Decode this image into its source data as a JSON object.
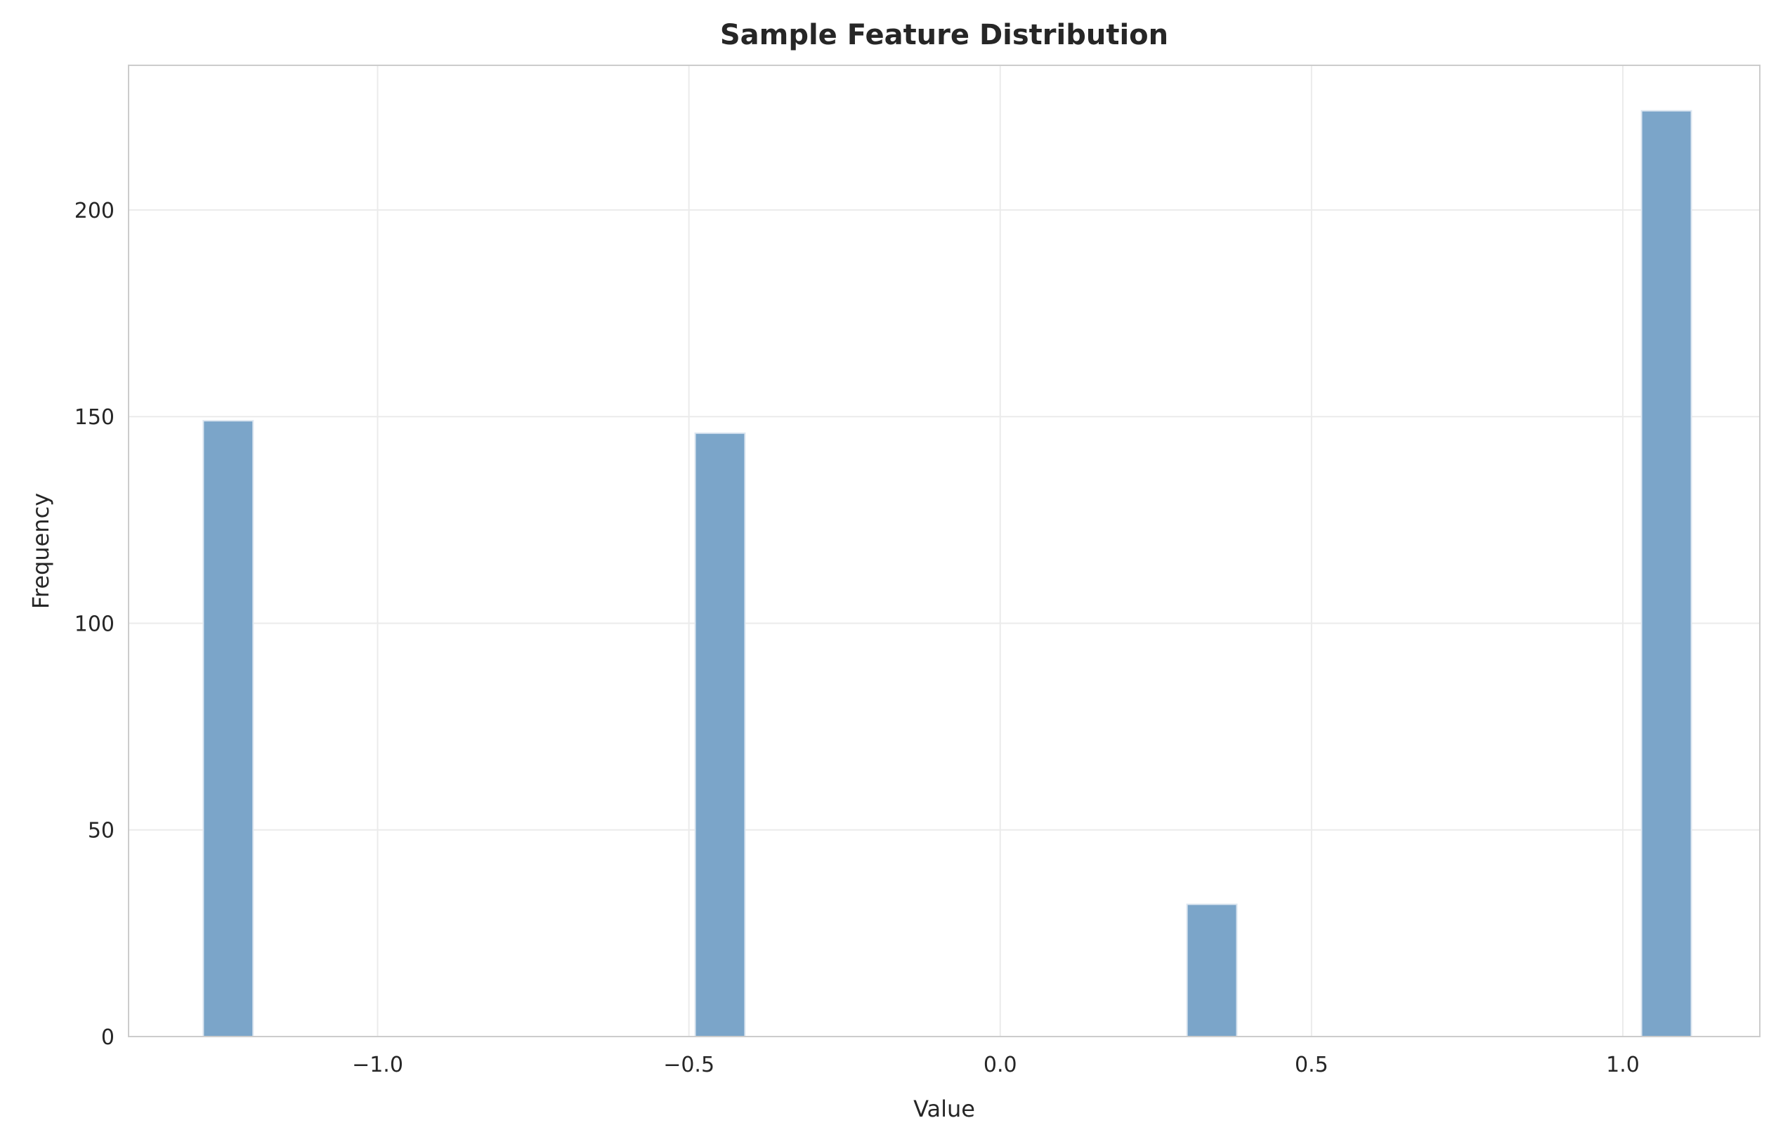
{
  "chart_data": {
    "type": "bar",
    "title": "Sample Feature Distribution",
    "xlabel": "Value",
    "ylabel": "Frequency",
    "xlim": [
      -1.4,
      1.22
    ],
    "ylim": [
      0,
      235
    ],
    "xticks": [
      -1.0,
      -0.5,
      0.0,
      0.5,
      1.0
    ],
    "xtick_labels": [
      "−1.0",
      "−0.5",
      "0.0",
      "0.5",
      "1.0"
    ],
    "yticks": [
      0,
      50,
      100,
      150,
      200
    ],
    "ytick_labels": [
      "0",
      "50",
      "100",
      "150",
      "200"
    ],
    "bars": [
      {
        "x0": -1.28,
        "x1": -1.2,
        "value": 149
      },
      {
        "x0": -0.49,
        "x1": -0.41,
        "value": 146
      },
      {
        "x0": 0.3,
        "x1": 0.38,
        "value": 32
      },
      {
        "x0": 1.03,
        "x1": 1.11,
        "value": 224
      }
    ],
    "grid": true,
    "bar_color": "#7ba5c9",
    "bar_edge_color": "#dce6f0",
    "grid_color": "#ebebeb",
    "spine_color": "#cccccc",
    "text_color": "#262626"
  }
}
